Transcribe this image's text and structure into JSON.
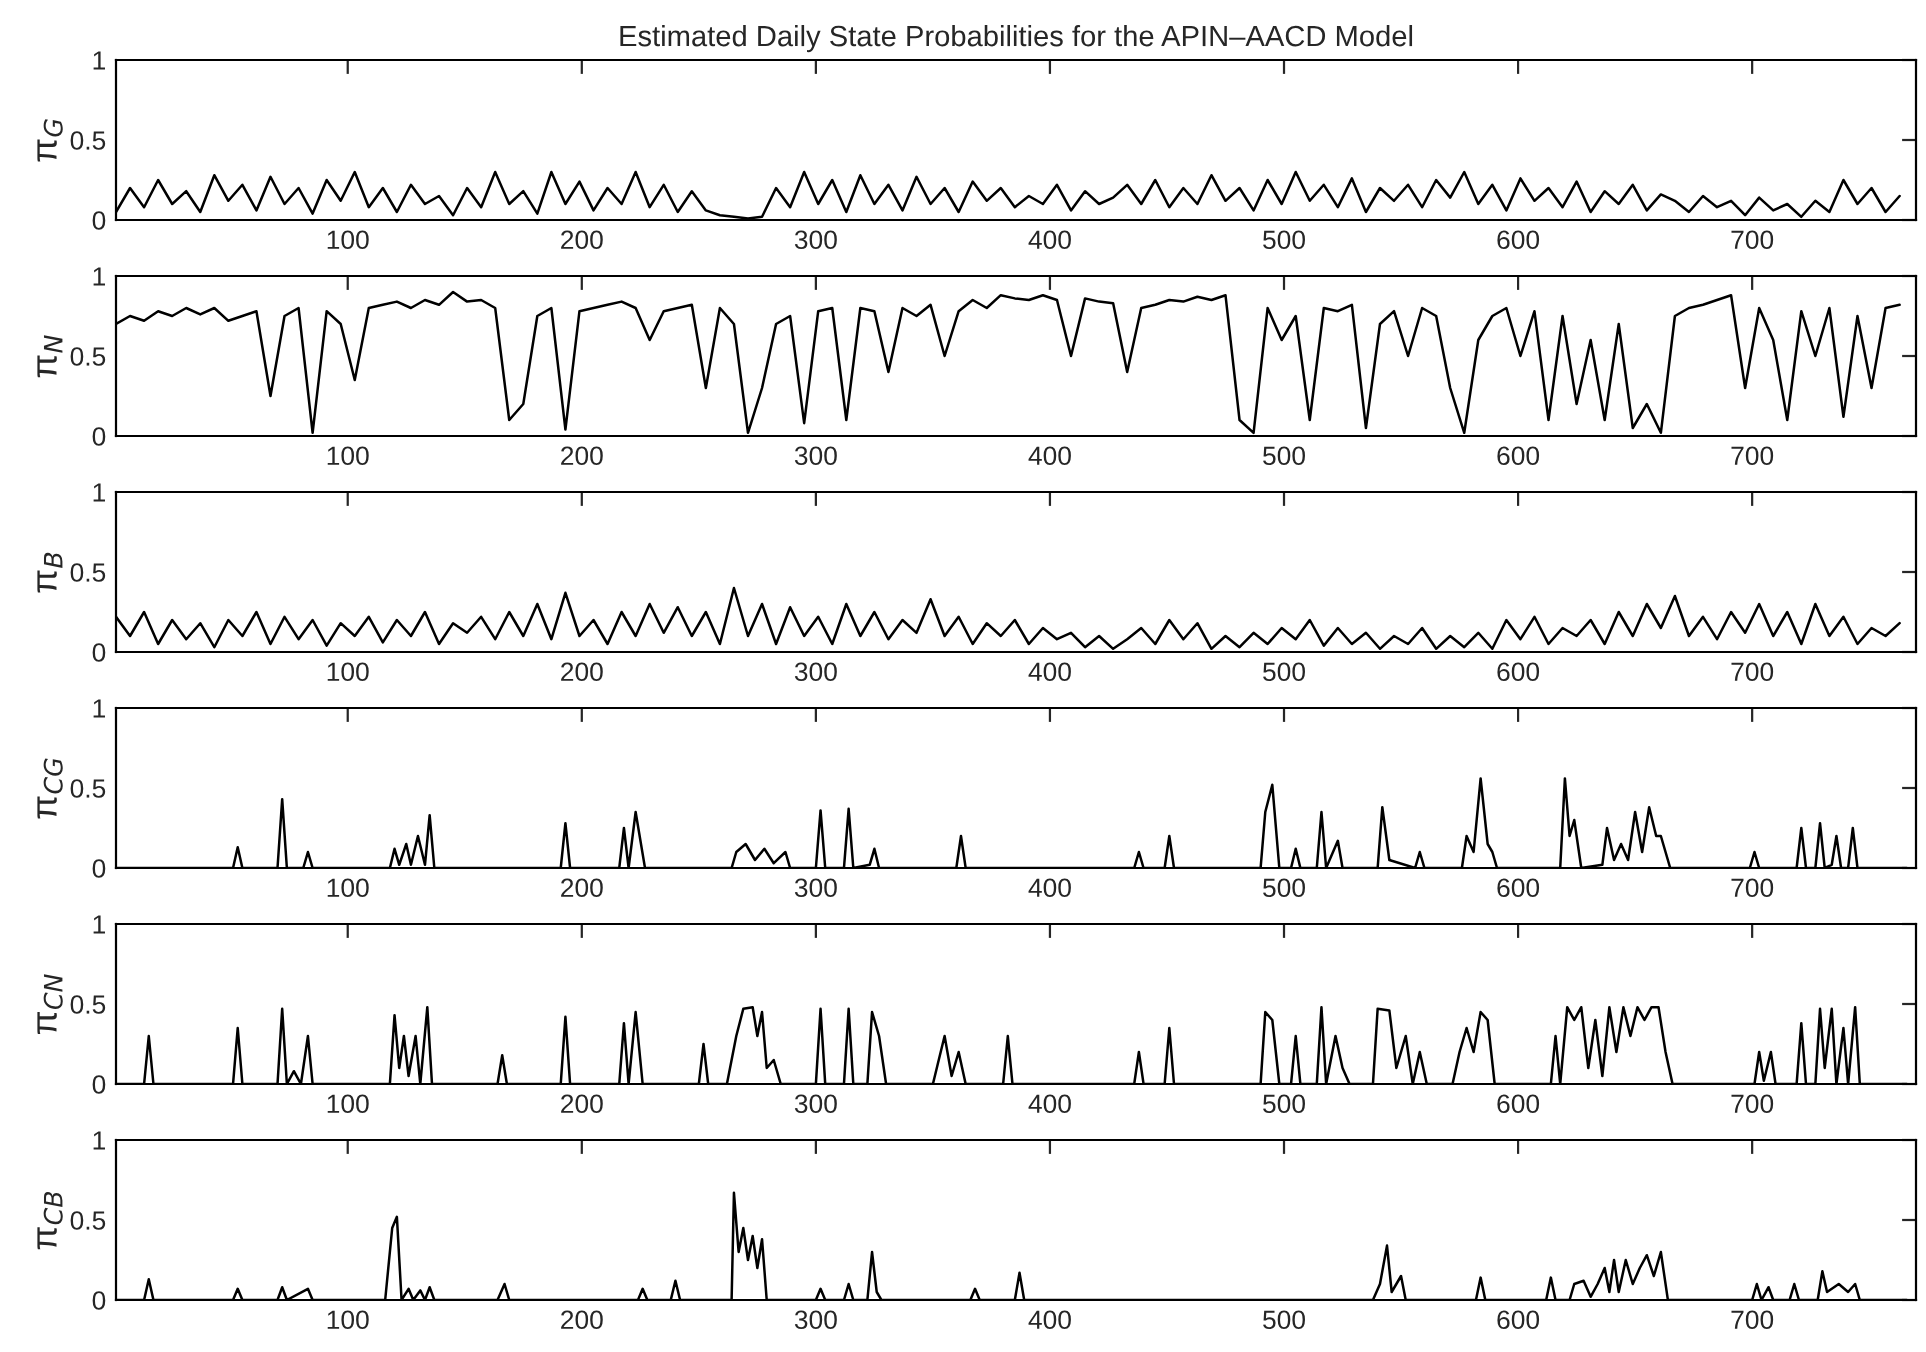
{
  "chart_data": [
    {
      "type": "line",
      "title": "Estimated Daily State Probabilities for the APIN–AACD Model",
      "ylabel": "π$_{G}$",
      "xlim": [
        1,
        770
      ],
      "ylim": [
        0,
        1
      ],
      "xticks": [
        100,
        200,
        300,
        400,
        500,
        600,
        700
      ],
      "yticks": [
        0,
        0.5,
        1
      ],
      "x": [
        1,
        7,
        13,
        19,
        25,
        31,
        37,
        43,
        49,
        55,
        61,
        67,
        73,
        79,
        85,
        91,
        97,
        103,
        109,
        115,
        121,
        127,
        133,
        139,
        145,
        151,
        157,
        163,
        169,
        175,
        181,
        187,
        193,
        199,
        205,
        211,
        217,
        223,
        229,
        235,
        241,
        247,
        253,
        259,
        265,
        271,
        277,
        283,
        289,
        295,
        301,
        307,
        313,
        319,
        325,
        331,
        337,
        343,
        349,
        355,
        361,
        367,
        373,
        379,
        385,
        391,
        397,
        403,
        409,
        415,
        421,
        427,
        433,
        439,
        445,
        451,
        457,
        463,
        469,
        475,
        481,
        487,
        493,
        499,
        505,
        511,
        517,
        523,
        529,
        535,
        541,
        547,
        553,
        559,
        565,
        571,
        577,
        583,
        589,
        595,
        601,
        607,
        613,
        619,
        625,
        631,
        637,
        643,
        649,
        655,
        661,
        667,
        673,
        679,
        685,
        691,
        697,
        703,
        709,
        715,
        721,
        727,
        733,
        739,
        745,
        751,
        757,
        763
      ],
      "series": [
        {
          "color": "#000000",
          "values": [
            0.05,
            0.2,
            0.08,
            0.25,
            0.1,
            0.18,
            0.05,
            0.28,
            0.12,
            0.22,
            0.06,
            0.27,
            0.1,
            0.2,
            0.04,
            0.25,
            0.12,
            0.3,
            0.08,
            0.2,
            0.05,
            0.22,
            0.1,
            0.15,
            0.03,
            0.2,
            0.08,
            0.3,
            0.1,
            0.18,
            0.04,
            0.3,
            0.1,
            0.24,
            0.06,
            0.2,
            0.1,
            0.3,
            0.08,
            0.22,
            0.05,
            0.18,
            0.06,
            0.03,
            0.02,
            0.01,
            0.02,
            0.2,
            0.08,
            0.3,
            0.1,
            0.25,
            0.05,
            0.28,
            0.1,
            0.22,
            0.06,
            0.27,
            0.1,
            0.2,
            0.05,
            0.24,
            0.12,
            0.2,
            0.08,
            0.15,
            0.1,
            0.22,
            0.06,
            0.18,
            0.1,
            0.14,
            0.22,
            0.1,
            0.25,
            0.08,
            0.2,
            0.1,
            0.28,
            0.12,
            0.2,
            0.06,
            0.25,
            0.1,
            0.3,
            0.12,
            0.22,
            0.08,
            0.26,
            0.05,
            0.2,
            0.12,
            0.22,
            0.08,
            0.25,
            0.14,
            0.3,
            0.1,
            0.22,
            0.06,
            0.26,
            0.12,
            0.2,
            0.08,
            0.24,
            0.05,
            0.18,
            0.1,
            0.22,
            0.06,
            0.16,
            0.12,
            0.05,
            0.15,
            0.08,
            0.12,
            0.03,
            0.14,
            0.06,
            0.1,
            0.02,
            0.12,
            0.05,
            0.25,
            0.1,
            0.2,
            0.05,
            0.15
          ]
        }
      ]
    },
    {
      "type": "line",
      "ylabel": "π$_{N}$",
      "xlim": [
        1,
        770
      ],
      "ylim": [
        0,
        1
      ],
      "xticks": [
        100,
        200,
        300,
        400,
        500,
        600,
        700
      ],
      "yticks": [
        0,
        0.5,
        1
      ],
      "x": [
        1,
        7,
        13,
        19,
        25,
        31,
        37,
        43,
        49,
        55,
        61,
        67,
        73,
        79,
        85,
        91,
        97,
        103,
        109,
        115,
        121,
        127,
        133,
        139,
        145,
        151,
        157,
        163,
        169,
        175,
        181,
        187,
        193,
        199,
        205,
        211,
        217,
        223,
        229,
        235,
        241,
        247,
        253,
        259,
        265,
        271,
        277,
        283,
        289,
        295,
        301,
        307,
        313,
        319,
        325,
        331,
        337,
        343,
        349,
        355,
        361,
        367,
        373,
        379,
        385,
        391,
        397,
        403,
        409,
        415,
        421,
        427,
        433,
        439,
        445,
        451,
        457,
        463,
        469,
        475,
        481,
        487,
        493,
        499,
        505,
        511,
        517,
        523,
        529,
        535,
        541,
        547,
        553,
        559,
        565,
        571,
        577,
        583,
        589,
        595,
        601,
        607,
        613,
        619,
        625,
        631,
        637,
        643,
        649,
        655,
        661,
        667,
        673,
        679,
        685,
        691,
        697,
        703,
        709,
        715,
        721,
        727,
        733,
        739,
        745,
        751,
        757,
        763
      ],
      "series": [
        {
          "color": "#000000",
          "values": [
            0.7,
            0.75,
            0.72,
            0.78,
            0.75,
            0.8,
            0.76,
            0.8,
            0.72,
            0.75,
            0.78,
            0.25,
            0.75,
            0.8,
            0.02,
            0.78,
            0.7,
            0.35,
            0.8,
            0.82,
            0.84,
            0.8,
            0.85,
            0.82,
            0.9,
            0.84,
            0.85,
            0.8,
            0.1,
            0.2,
            0.75,
            0.8,
            0.04,
            0.78,
            0.8,
            0.82,
            0.84,
            0.8,
            0.6,
            0.78,
            0.8,
            0.82,
            0.3,
            0.8,
            0.7,
            0.02,
            0.3,
            0.7,
            0.75,
            0.08,
            0.78,
            0.8,
            0.1,
            0.8,
            0.78,
            0.4,
            0.8,
            0.75,
            0.82,
            0.5,
            0.78,
            0.85,
            0.8,
            0.88,
            0.86,
            0.85,
            0.88,
            0.85,
            0.5,
            0.86,
            0.84,
            0.83,
            0.4,
            0.8,
            0.82,
            0.85,
            0.84,
            0.87,
            0.85,
            0.88,
            0.1,
            0.02,
            0.8,
            0.6,
            0.75,
            0.1,
            0.8,
            0.78,
            0.82,
            0.05,
            0.7,
            0.78,
            0.5,
            0.8,
            0.75,
            0.3,
            0.02,
            0.6,
            0.75,
            0.8,
            0.5,
            0.78,
            0.1,
            0.75,
            0.2,
            0.6,
            0.1,
            0.7,
            0.05,
            0.2,
            0.02,
            0.75,
            0.8,
            0.82,
            0.85,
            0.88,
            0.3,
            0.8,
            0.6,
            0.1,
            0.78,
            0.5,
            0.8,
            0.12,
            0.75,
            0.3,
            0.8,
            0.82
          ]
        }
      ]
    },
    {
      "type": "line",
      "ylabel": "π$_{B}$",
      "xlim": [
        1,
        770
      ],
      "ylim": [
        0,
        1
      ],
      "xticks": [
        100,
        200,
        300,
        400,
        500,
        600,
        700
      ],
      "yticks": [
        0,
        0.5,
        1
      ],
      "x": [
        1,
        7,
        13,
        19,
        25,
        31,
        37,
        43,
        49,
        55,
        61,
        67,
        73,
        79,
        85,
        91,
        97,
        103,
        109,
        115,
        121,
        127,
        133,
        139,
        145,
        151,
        157,
        163,
        169,
        175,
        181,
        187,
        193,
        199,
        205,
        211,
        217,
        223,
        229,
        235,
        241,
        247,
        253,
        259,
        265,
        271,
        277,
        283,
        289,
        295,
        301,
        307,
        313,
        319,
        325,
        331,
        337,
        343,
        349,
        355,
        361,
        367,
        373,
        379,
        385,
        391,
        397,
        403,
        409,
        415,
        421,
        427,
        433,
        439,
        445,
        451,
        457,
        463,
        469,
        475,
        481,
        487,
        493,
        499,
        505,
        511,
        517,
        523,
        529,
        535,
        541,
        547,
        553,
        559,
        565,
        571,
        577,
        583,
        589,
        595,
        601,
        607,
        613,
        619,
        625,
        631,
        637,
        643,
        649,
        655,
        661,
        667,
        673,
        679,
        685,
        691,
        697,
        703,
        709,
        715,
        721,
        727,
        733,
        739,
        745,
        751,
        757,
        763
      ],
      "series": [
        {
          "color": "#000000",
          "values": [
            0.22,
            0.1,
            0.25,
            0.05,
            0.2,
            0.08,
            0.18,
            0.03,
            0.2,
            0.1,
            0.25,
            0.05,
            0.22,
            0.08,
            0.2,
            0.04,
            0.18,
            0.1,
            0.22,
            0.06,
            0.2,
            0.1,
            0.25,
            0.05,
            0.18,
            0.12,
            0.22,
            0.08,
            0.25,
            0.1,
            0.3,
            0.08,
            0.37,
            0.1,
            0.2,
            0.05,
            0.25,
            0.1,
            0.3,
            0.12,
            0.28,
            0.1,
            0.25,
            0.05,
            0.4,
            0.1,
            0.3,
            0.05,
            0.28,
            0.1,
            0.22,
            0.05,
            0.3,
            0.1,
            0.25,
            0.08,
            0.2,
            0.12,
            0.33,
            0.1,
            0.22,
            0.05,
            0.18,
            0.1,
            0.2,
            0.05,
            0.15,
            0.08,
            0.12,
            0.03,
            0.1,
            0.02,
            0.08,
            0.15,
            0.05,
            0.2,
            0.08,
            0.18,
            0.02,
            0.1,
            0.03,
            0.12,
            0.05,
            0.15,
            0.08,
            0.2,
            0.04,
            0.15,
            0.05,
            0.12,
            0.02,
            0.1,
            0.05,
            0.15,
            0.02,
            0.1,
            0.03,
            0.12,
            0.02,
            0.2,
            0.08,
            0.22,
            0.05,
            0.15,
            0.1,
            0.2,
            0.05,
            0.25,
            0.1,
            0.3,
            0.15,
            0.35,
            0.1,
            0.22,
            0.08,
            0.25,
            0.12,
            0.3,
            0.1,
            0.25,
            0.05,
            0.3,
            0.1,
            0.22,
            0.05,
            0.15,
            0.1,
            0.18
          ]
        }
      ]
    },
    {
      "type": "line",
      "ylabel": "π$_{CG}$",
      "xlim": [
        1,
        770
      ],
      "ylim": [
        0,
        1
      ],
      "xticks": [
        100,
        200,
        300,
        400,
        500,
        600,
        700
      ],
      "yticks": [
        0,
        0.5,
        1
      ],
      "x": [
        1,
        51,
        53,
        55,
        70,
        72,
        74,
        81,
        83,
        85,
        118,
        120,
        122,
        125,
        127,
        130,
        133,
        135,
        137,
        191,
        193,
        195,
        216,
        218,
        220,
        223,
        227,
        264,
        266,
        270,
        274,
        278,
        282,
        287,
        289,
        300,
        302,
        304,
        312,
        314,
        316,
        323,
        325,
        327,
        360,
        362,
        364,
        436,
        438,
        440,
        449,
        451,
        453,
        490,
        492,
        495,
        498,
        503,
        505,
        507,
        514,
        516,
        518,
        523,
        525,
        540,
        542,
        545,
        556,
        558,
        560,
        576,
        578,
        581,
        584,
        587,
        589,
        591,
        618,
        620,
        622,
        624,
        627,
        636,
        638,
        641,
        644,
        647,
        650,
        653,
        656,
        659,
        661,
        665,
        699,
        701,
        703,
        719,
        721,
        723,
        727,
        729,
        731,
        734,
        736,
        738,
        741,
        743,
        745,
        766
      ],
      "series": [
        {
          "color": "#000000",
          "values": [
            0,
            0,
            0.13,
            0,
            0,
            0.43,
            0,
            0,
            0.1,
            0,
            0,
            0.12,
            0.02,
            0.15,
            0.02,
            0.2,
            0.02,
            0.33,
            0,
            0,
            0.28,
            0,
            0,
            0.25,
            0,
            0.35,
            0,
            0,
            0.1,
            0.15,
            0.05,
            0.12,
            0.03,
            0.1,
            0,
            0,
            0.36,
            0,
            0,
            0.37,
            0,
            0.02,
            0.12,
            0,
            0,
            0.2,
            0,
            0,
            0.1,
            0,
            0,
            0.2,
            0,
            0,
            0.35,
            0.52,
            0,
            0,
            0.12,
            0,
            0,
            0.35,
            0,
            0.17,
            0,
            0,
            0.38,
            0.05,
            0,
            0.1,
            0,
            0,
            0.2,
            0.1,
            0.56,
            0.15,
            0.1,
            0,
            0,
            0.56,
            0.2,
            0.3,
            0,
            0.02,
            0.25,
            0.05,
            0.15,
            0.05,
            0.35,
            0.1,
            0.38,
            0.2,
            0.2,
            0,
            0,
            0.1,
            0,
            0,
            0.25,
            0,
            0,
            0.28,
            0,
            0.02,
            0.2,
            0,
            0,
            0.25,
            0,
            0
          ]
        }
      ]
    },
    {
      "type": "line",
      "ylabel": "π$_{CN}$",
      "xlim": [
        1,
        770
      ],
      "ylim": [
        0,
        1
      ],
      "xticks": [
        100,
        200,
        300,
        400,
        500,
        600,
        700
      ],
      "yticks": [
        0,
        0.5,
        1
      ],
      "x": [
        1,
        13,
        15,
        17,
        51,
        53,
        55,
        70,
        72,
        74,
        77,
        80,
        83,
        85,
        118,
        120,
        122,
        124,
        126,
        129,
        131,
        134,
        136,
        164,
        166,
        168,
        191,
        193,
        195,
        216,
        218,
        220,
        223,
        226,
        250,
        252,
        254,
        262,
        266,
        269,
        273,
        275,
        277,
        279,
        282,
        285,
        300,
        302,
        304,
        312,
        314,
        316,
        322,
        324,
        327,
        330,
        350,
        352,
        355,
        358,
        361,
        364,
        380,
        382,
        384,
        436,
        438,
        440,
        449,
        451,
        453,
        490,
        492,
        495,
        498,
        503,
        505,
        507,
        514,
        516,
        518,
        522,
        525,
        528,
        538,
        540,
        545,
        548,
        552,
        555,
        558,
        561,
        572,
        575,
        578,
        581,
        584,
        587,
        590,
        614,
        616,
        618,
        621,
        624,
        627,
        630,
        633,
        636,
        639,
        642,
        645,
        648,
        651,
        654,
        657,
        660,
        663,
        666,
        701,
        703,
        705,
        708,
        710,
        719,
        721,
        723,
        727,
        729,
        731,
        734,
        736,
        739,
        741,
        744,
        746,
        766
      ],
      "series": [
        {
          "color": "#000000",
          "values": [
            0,
            0,
            0.3,
            0,
            0,
            0.35,
            0,
            0,
            0.47,
            0,
            0.08,
            0,
            0.3,
            0,
            0,
            0.43,
            0.1,
            0.3,
            0.05,
            0.3,
            0,
            0.48,
            0,
            0,
            0.18,
            0,
            0,
            0.42,
            0,
            0,
            0.38,
            0,
            0.45,
            0,
            0,
            0.25,
            0,
            0,
            0.3,
            0.47,
            0.48,
            0.3,
            0.45,
            0.1,
            0.15,
            0,
            0,
            0.47,
            0,
            0,
            0.47,
            0,
            0,
            0.45,
            0.3,
            0,
            0,
            0.12,
            0.3,
            0.05,
            0.2,
            0,
            0,
            0.3,
            0,
            0,
            0.2,
            0,
            0,
            0.35,
            0,
            0,
            0.45,
            0.4,
            0,
            0,
            0.3,
            0,
            0,
            0.48,
            0,
            0.3,
            0.1,
            0,
            0,
            0.47,
            0.46,
            0.1,
            0.3,
            0,
            0.2,
            0,
            0,
            0.2,
            0.35,
            0.2,
            0.45,
            0.4,
            0,
            0,
            0.3,
            0,
            0.48,
            0.4,
            0.48,
            0.1,
            0.4,
            0.05,
            0.48,
            0.2,
            0.48,
            0.3,
            0.48,
            0.4,
            0.48,
            0.48,
            0.2,
            0,
            0,
            0.2,
            0.02,
            0.2,
            0,
            0,
            0.38,
            0,
            0,
            0.47,
            0.1,
            0.47,
            0,
            0.35,
            0,
            0.48,
            0,
            0
          ]
        }
      ]
    },
    {
      "type": "line",
      "ylabel": "π$_{CB}$",
      "xlim": [
        1,
        770
      ],
      "ylim": [
        0,
        1
      ],
      "xticks": [
        100,
        200,
        300,
        400,
        500,
        600,
        700
      ],
      "yticks": [
        0,
        0.5,
        1
      ],
      "x": [
        1,
        13,
        15,
        17,
        51,
        53,
        55,
        70,
        72,
        74,
        83,
        85,
        116,
        119,
        121,
        123,
        126,
        128,
        131,
        133,
        135,
        137,
        164,
        167,
        169,
        224,
        226,
        228,
        238,
        240,
        242,
        264,
        265,
        267,
        269,
        271,
        273,
        275,
        277,
        279,
        300,
        302,
        304,
        312,
        314,
        316,
        322,
        324,
        326,
        328,
        366,
        368,
        370,
        385,
        387,
        389,
        538,
        541,
        544,
        546,
        550,
        552,
        582,
        584,
        586,
        612,
        614,
        616,
        622,
        624,
        628,
        631,
        634,
        637,
        639,
        641,
        643,
        646,
        649,
        652,
        655,
        658,
        661,
        664,
        700,
        702,
        704,
        707,
        709,
        716,
        718,
        720,
        728,
        730,
        732,
        737,
        741,
        744,
        746,
        766
      ],
      "series": [
        {
          "color": "#000000",
          "values": [
            0,
            0,
            0.13,
            0,
            0,
            0.07,
            0,
            0,
            0.08,
            0,
            0.07,
            0,
            0,
            0.45,
            0.52,
            0,
            0.07,
            0,
            0.06,
            0,
            0.08,
            0,
            0,
            0.1,
            0,
            0,
            0.07,
            0,
            0,
            0.12,
            0,
            0,
            0.67,
            0.3,
            0.45,
            0.25,
            0.4,
            0.2,
            0.38,
            0,
            0,
            0.07,
            0,
            0,
            0.1,
            0,
            0,
            0.3,
            0.05,
            0,
            0,
            0.07,
            0,
            0,
            0.17,
            0,
            0,
            0.1,
            0.34,
            0.05,
            0.15,
            0,
            0,
            0.14,
            0,
            0,
            0.14,
            0,
            0,
            0.1,
            0.12,
            0.02,
            0.1,
            0.2,
            0.05,
            0.25,
            0.05,
            0.25,
            0.1,
            0.2,
            0.28,
            0.15,
            0.3,
            0,
            0,
            0.1,
            0,
            0.08,
            0,
            0,
            0.1,
            0,
            0,
            0.18,
            0.05,
            0.1,
            0.05,
            0.1,
            0,
            0
          ]
        }
      ]
    }
  ]
}
